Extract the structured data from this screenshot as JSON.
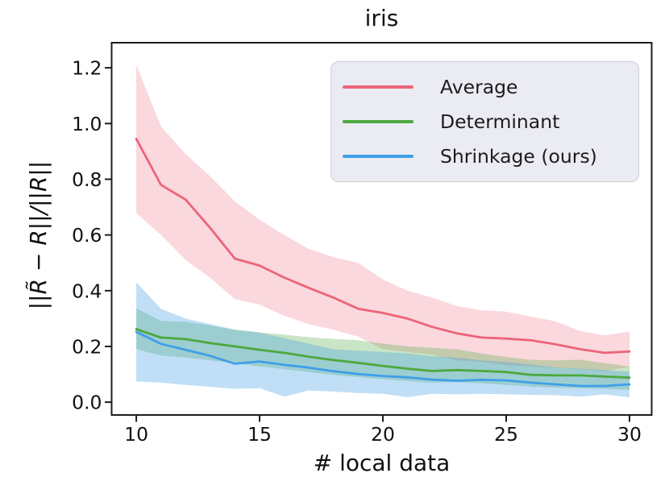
{
  "figure_title": "iris",
  "chart_data": {
    "type": "line",
    "title": "iris",
    "xlabel": "# local data",
    "ylabel": "||R̃ − R||/||R||",
    "grid": false,
    "legend_position": "upper right",
    "xlim": [
      9.0,
      30.9
    ],
    "ylim": [
      -0.046,
      1.29
    ],
    "xticks": [
      10,
      15,
      20,
      25,
      30
    ],
    "ytick_labels": [
      "0.0",
      "0.2",
      "0.4",
      "0.6",
      "0.8",
      "1.0",
      "1.2"
    ],
    "ytick_values": [
      0.0,
      0.2,
      0.4,
      0.6,
      0.8,
      1.0,
      1.2
    ],
    "x": [
      10,
      11,
      12,
      13,
      14,
      15,
      16,
      17,
      18,
      19,
      20,
      21,
      22,
      23,
      24,
      25,
      26,
      27,
      28,
      29,
      30
    ],
    "series": [
      {
        "name": "Average",
        "color": "#ec6479",
        "band_alpha": 0.25,
        "values": [
          0.945,
          0.78,
          0.727,
          0.625,
          0.515,
          0.49,
          0.447,
          0.41,
          0.375,
          0.335,
          0.32,
          0.3,
          0.27,
          0.247,
          0.232,
          0.228,
          0.222,
          0.208,
          0.19,
          0.177,
          0.182
        ],
        "upper": [
          1.21,
          0.99,
          0.89,
          0.81,
          0.72,
          0.655,
          0.6,
          0.55,
          0.52,
          0.5,
          0.44,
          0.4,
          0.375,
          0.345,
          0.33,
          0.325,
          0.307,
          0.29,
          0.255,
          0.24,
          0.253
        ],
        "lower": [
          0.678,
          0.6,
          0.51,
          0.446,
          0.37,
          0.35,
          0.31,
          0.28,
          0.26,
          0.235,
          0.19,
          0.18,
          0.17,
          0.15,
          0.145,
          0.133,
          0.128,
          0.124,
          0.118,
          0.111,
          0.127
        ]
      },
      {
        "name": "Determinant",
        "color": "#4da83e",
        "band_alpha": 0.3,
        "values": [
          0.262,
          0.232,
          0.226,
          0.212,
          0.2,
          0.188,
          0.177,
          0.163,
          0.151,
          0.141,
          0.13,
          0.12,
          0.112,
          0.115,
          0.112,
          0.108,
          0.098,
          0.096,
          0.096,
          0.092,
          0.088
        ],
        "upper": [
          0.337,
          0.292,
          0.288,
          0.275,
          0.26,
          0.25,
          0.242,
          0.233,
          0.227,
          0.222,
          0.21,
          0.2,
          0.195,
          0.19,
          0.175,
          0.162,
          0.152,
          0.15,
          0.152,
          0.14,
          0.128
        ],
        "lower": [
          0.19,
          0.167,
          0.16,
          0.15,
          0.14,
          0.128,
          0.118,
          0.108,
          0.098,
          0.09,
          0.082,
          0.076,
          0.07,
          0.072,
          0.068,
          0.062,
          0.056,
          0.052,
          0.05,
          0.048,
          0.044
        ]
      },
      {
        "name": "Shrinkage (ours)",
        "color": "#3f9fe8",
        "band_alpha": 0.33,
        "values": [
          0.252,
          0.209,
          0.188,
          0.166,
          0.138,
          0.146,
          0.134,
          0.124,
          0.111,
          0.101,
          0.094,
          0.089,
          0.081,
          0.077,
          0.08,
          0.078,
          0.07,
          0.064,
          0.058,
          0.058,
          0.064
        ],
        "upper": [
          0.43,
          0.335,
          0.3,
          0.28,
          0.26,
          0.25,
          0.23,
          0.21,
          0.19,
          0.185,
          0.18,
          0.175,
          0.165,
          0.16,
          0.15,
          0.145,
          0.135,
          0.125,
          0.12,
          0.115,
          0.11
        ],
        "lower": [
          0.075,
          0.07,
          0.062,
          0.055,
          0.048,
          0.05,
          0.02,
          0.042,
          0.038,
          0.033,
          0.03,
          0.018,
          0.03,
          0.028,
          0.03,
          0.028,
          0.026,
          0.025,
          0.02,
          0.028,
          0.017
        ]
      }
    ]
  }
}
